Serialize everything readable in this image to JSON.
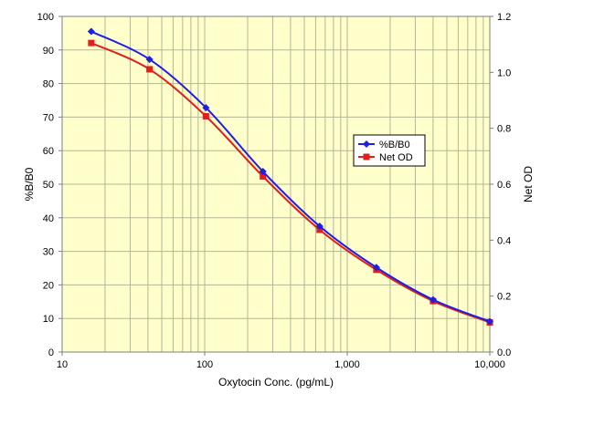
{
  "chart_data": {
    "type": "line",
    "xlabel": "Oxytocin Conc. (pg/mL)",
    "ylabel": "%B/B0",
    "y2label": "Net OD",
    "xscale": "log",
    "xlim": [
      10,
      10000
    ],
    "ylim": [
      0,
      100
    ],
    "y2lim": [
      0,
      1.2
    ],
    "x_ticks": [
      10,
      100,
      1000,
      10000
    ],
    "x_tick_labels": [
      "10",
      "100",
      "1,000",
      "10,000"
    ],
    "y_ticks": [
      0,
      10,
      20,
      30,
      40,
      50,
      60,
      70,
      80,
      90,
      100
    ],
    "y_tick_labels": [
      "0",
      "10",
      "20",
      "30",
      "40",
      "50",
      "60",
      "70",
      "80",
      "90",
      "100"
    ],
    "y2_ticks": [
      0,
      0.2,
      0.4,
      0.6,
      0.8,
      1.0,
      1.2
    ],
    "y2_tick_labels": [
      "0.0",
      "0.2",
      "0.4",
      "0.6",
      "0.8",
      "1.0",
      "1.2"
    ],
    "grid": true,
    "legend_position": "right-middle",
    "background_color": "#ffffcc",
    "grid_color": "#b5b595",
    "x": [
      16,
      41,
      102,
      256,
      640,
      1600,
      4000,
      10000
    ],
    "series": [
      {
        "name": "%B/B0",
        "axis": "left",
        "color": "#1f1fe0",
        "marker": "diamond",
        "values": [
          95.5,
          87.2,
          72.8,
          53.8,
          37.5,
          25.2,
          15.6,
          9.1
        ]
      },
      {
        "name": "Net OD",
        "axis": "right",
        "color": "#e01f1f",
        "marker": "square",
        "values": [
          1.105,
          1.011,
          0.843,
          0.628,
          0.437,
          0.294,
          0.182,
          0.106
        ]
      }
    ]
  }
}
